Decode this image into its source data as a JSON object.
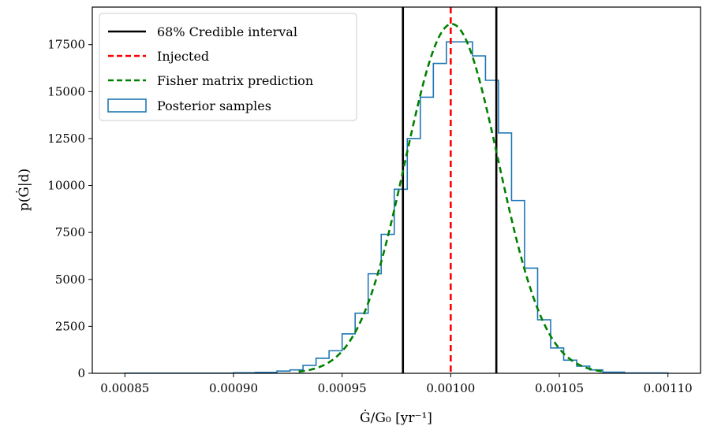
{
  "chart_data": {
    "type": "histogram",
    "xlabel": "Ġ/G₀ [yr⁻¹]",
    "ylabel": "p(Ġ|d)",
    "xlim": [
      0.000835,
      0.001115
    ],
    "ylim": [
      0,
      19500
    ],
    "xticks": [
      0.00085,
      0.0009,
      0.00095,
      0.001,
      0.00105,
      0.0011
    ],
    "xtick_labels": [
      "0.00085",
      "0.00090",
      "0.00095",
      "0.00100",
      "0.00105",
      "0.00110"
    ],
    "yticks": [
      0,
      2500,
      5000,
      7500,
      10000,
      12500,
      15000,
      17500
    ],
    "ytick_labels": [
      "0",
      "2500",
      "5000",
      "7500",
      "10000",
      "12500",
      "15000",
      "17500"
    ],
    "grid": false,
    "legend_position": "top-left",
    "series": [
      {
        "name": "68% Credible interval",
        "kind": "vline",
        "color": "#000000",
        "style": "solid",
        "x": [
          0.000978,
          0.001021
        ]
      },
      {
        "name": "Injected",
        "kind": "vline",
        "color": "#ff0000",
        "style": "dashed",
        "x": [
          0.001
        ]
      },
      {
        "name": "Fisher matrix prediction",
        "kind": "gaussian",
        "color": "#008000",
        "style": "dashed",
        "mean": 0.0010005,
        "sigma": 2.15e-05,
        "peak": 18600
      },
      {
        "name": "Posterior samples",
        "kind": "step-histogram",
        "color": "#1f77b4",
        "bin_edges": [
          0.00085,
          0.0009,
          0.00091,
          0.00092,
          0.000926,
          0.000932,
          0.000938,
          0.000944,
          0.00095,
          0.000956,
          0.000962,
          0.000968,
          0.000974,
          0.00098,
          0.000986,
          0.000992,
          0.000998,
          0.001004,
          0.00101,
          0.001016,
          0.001022,
          0.001028,
          0.001034,
          0.00104,
          0.001046,
          0.001052,
          0.001058,
          0.001064,
          0.00107,
          0.00108,
          0.0011
        ],
        "counts": [
          10,
          30,
          50,
          120,
          180,
          420,
          800,
          1200,
          2100,
          3200,
          5300,
          7400,
          9800,
          12500,
          14700,
          16500,
          17650,
          17650,
          16900,
          15600,
          12800,
          9200,
          5600,
          2850,
          1350,
          700,
          380,
          180,
          60,
          20
        ]
      }
    ],
    "legend": [
      {
        "label": "68% Credible interval"
      },
      {
        "label": "Injected"
      },
      {
        "label": "Fisher matrix prediction"
      },
      {
        "label": "Posterior samples"
      }
    ]
  }
}
